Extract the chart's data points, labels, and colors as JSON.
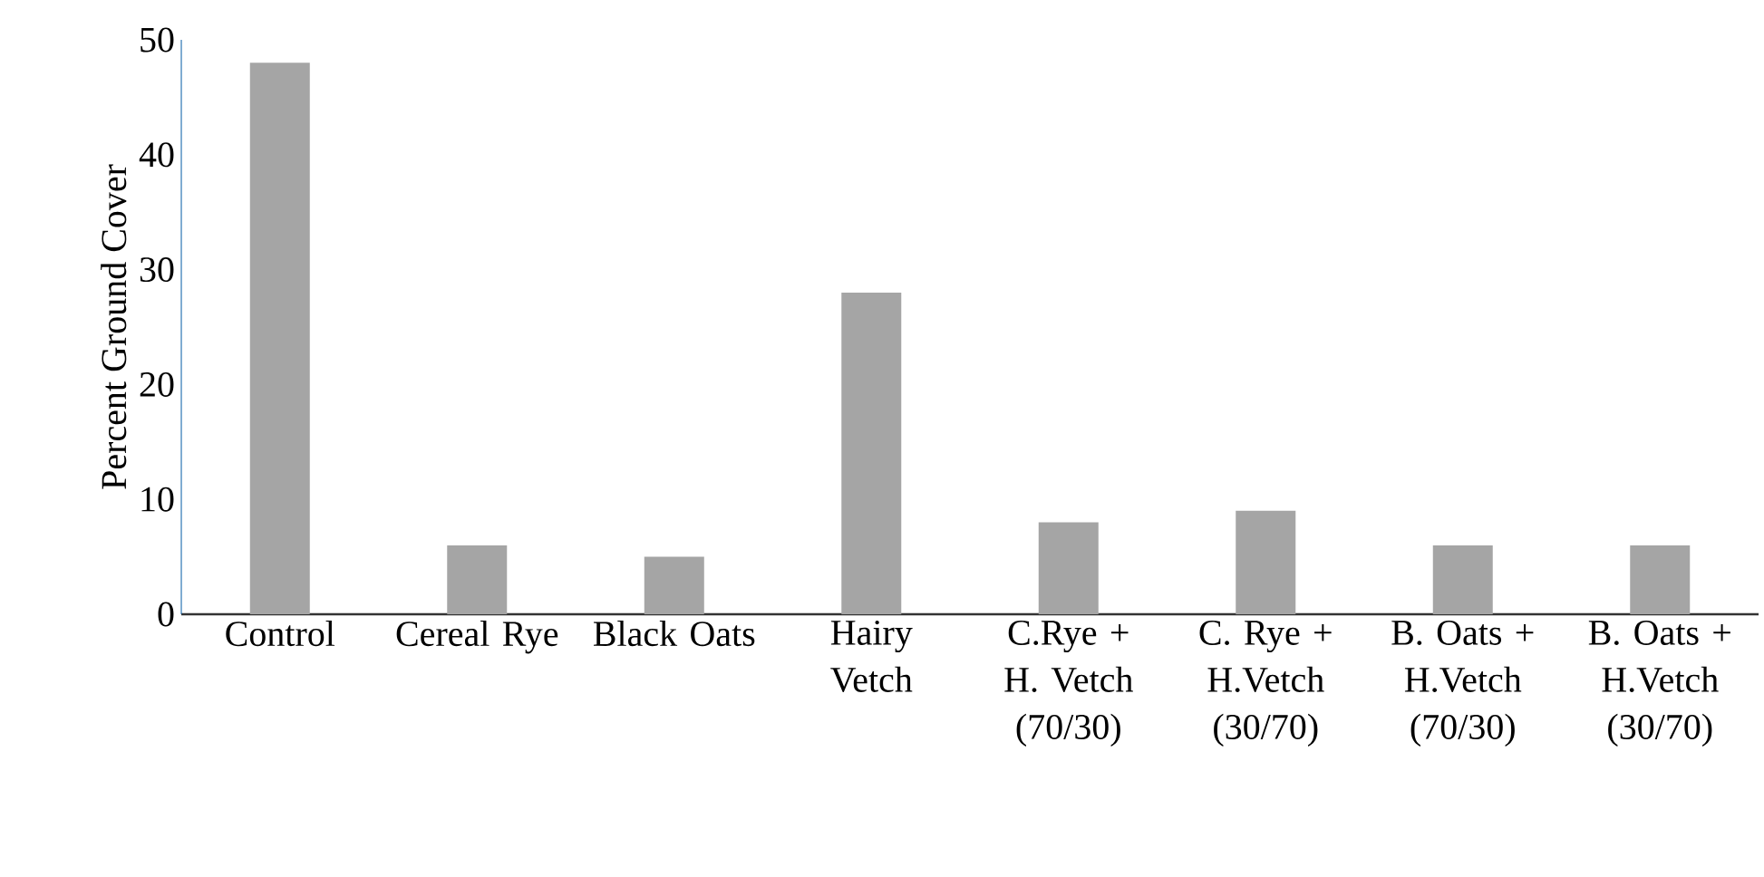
{
  "chart_data": {
    "type": "bar",
    "ylabel": "Percent Ground Cover",
    "categories": [
      "Control",
      "Cereal Rye",
      "Black Oats",
      "Hairy Vetch",
      "C.Rye + H. Vetch (70/30)",
      "C. Rye + H.Vetch (30/70)",
      "B. Oats + H.Vetch (70/30)",
      "B. Oats + H.Vetch (30/70)"
    ],
    "values": [
      48,
      6,
      5,
      28,
      8,
      9,
      6,
      6
    ],
    "color": "#a5a5a5",
    "ylim": [
      0,
      50
    ],
    "yticks": [
      0,
      10,
      20,
      30,
      40,
      50
    ],
    "grid": false
  }
}
